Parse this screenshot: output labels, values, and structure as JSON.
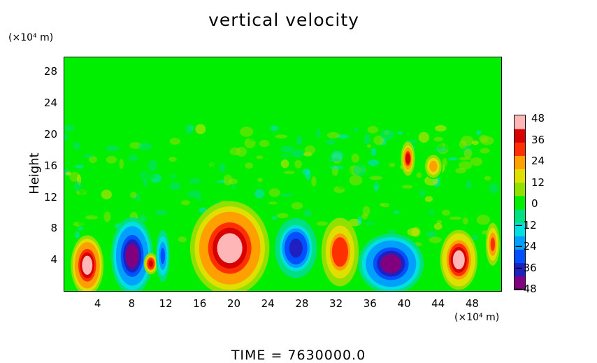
{
  "title": "vertical velocity",
  "y_unit": "(×10⁴ m)",
  "x_unit": "(×10⁴ m)",
  "footer": "TIME  =  7630000.0",
  "chart_data": {
    "type": "heatmap",
    "title": "vertical velocity",
    "ylabel": "Height",
    "xlabel": "",
    "xlim": [
      0,
      51.5
    ],
    "ylim": [
      0,
      30
    ],
    "x_ticks": [
      "4",
      "8",
      "12",
      "16",
      "20",
      "24",
      "28",
      "32",
      "36",
      "40",
      "44",
      "48"
    ],
    "y_ticks": [
      "4",
      "8",
      "12",
      "16",
      "20",
      "24",
      "28"
    ],
    "colorbar": {
      "range": [
        -48,
        48
      ],
      "ticks": [
        "48",
        "36",
        "24",
        "12",
        "0",
        "−12",
        "−24",
        "−36",
        "−48"
      ],
      "colors": [
        "#800080",
        "#2020c0",
        "#0050ff",
        "#00a0ff",
        "#00e0e0",
        "#00e080",
        "#00ee00",
        "#90e000",
        "#e0e000",
        "#ffa000",
        "#ff3000",
        "#d80000",
        "#ffb6b6"
      ]
    },
    "features": [
      {
        "x": 2.7,
        "y": 3.3,
        "w": 3.5,
        "h": 7,
        "value": 48
      },
      {
        "x": 8.0,
        "y": 4.5,
        "w": 4.5,
        "h": 9,
        "value": -48
      },
      {
        "x": 10.2,
        "y": 3.5,
        "w": 1.5,
        "h": 2.5,
        "value": 40
      },
      {
        "x": 11.6,
        "y": 4.5,
        "w": 1.5,
        "h": 6,
        "value": -30
      },
      {
        "x": 19.5,
        "y": 5.5,
        "w": 8.5,
        "h": 11,
        "value": 48
      },
      {
        "x": 27.3,
        "y": 5.5,
        "w": 4.5,
        "h": 7,
        "value": -42
      },
      {
        "x": 32.5,
        "y": 5.0,
        "w": 4,
        "h": 8,
        "value": 34
      },
      {
        "x": 38.5,
        "y": 3.5,
        "w": 7,
        "h": 7,
        "value": -48
      },
      {
        "x": 40.5,
        "y": 17.0,
        "w": 1.5,
        "h": 4,
        "value": 36
      },
      {
        "x": 43.5,
        "y": 16.0,
        "w": 2,
        "h": 3,
        "value": 26
      },
      {
        "x": 46.5,
        "y": 4.0,
        "w": 4,
        "h": 7,
        "value": 44
      },
      {
        "x": 50.5,
        "y": 6.0,
        "w": 1.5,
        "h": 5,
        "value": 28
      }
    ]
  }
}
